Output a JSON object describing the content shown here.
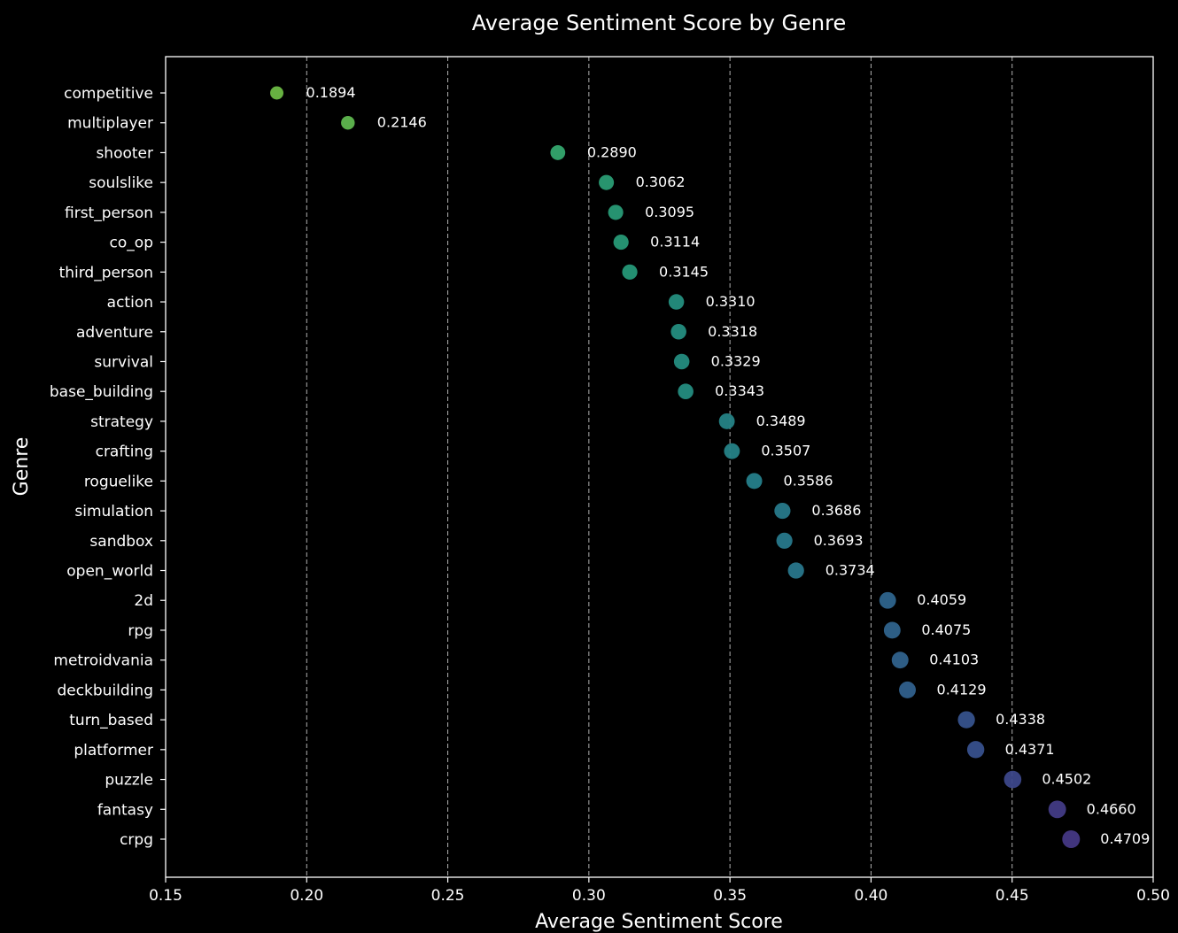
{
  "chart_data": {
    "type": "scatter",
    "title": "Average Sentiment Score by Genre",
    "xlabel": "Average Sentiment Score",
    "ylabel": "Genre",
    "xlim": [
      0.15,
      0.5
    ],
    "xticks": [
      "0.15",
      "0.20",
      "0.25",
      "0.30",
      "0.35",
      "0.40",
      "0.45",
      "0.50"
    ],
    "xtick_values": [
      0.15,
      0.2,
      0.25,
      0.3,
      0.35,
      0.4,
      0.45,
      0.5
    ],
    "grid": "x-dashed",
    "colormap": "viridis",
    "categories": [
      "competitive",
      "multiplayer",
      "shooter",
      "soulslike",
      "first_person",
      "co_op",
      "third_person",
      "action",
      "adventure",
      "survival",
      "base_building",
      "strategy",
      "crafting",
      "roguelike",
      "simulation",
      "sandbox",
      "open_world",
      "2d",
      "rpg",
      "metroidvania",
      "deckbuilding",
      "turn_based",
      "platformer",
      "puzzle",
      "fantasy",
      "crpg"
    ],
    "values": [
      0.1894,
      0.2146,
      0.289,
      0.3062,
      0.3095,
      0.3114,
      0.3145,
      0.331,
      0.3318,
      0.3329,
      0.3343,
      0.3489,
      0.3507,
      0.3586,
      0.3686,
      0.3693,
      0.3734,
      0.4059,
      0.4075,
      0.4103,
      0.4129,
      0.4338,
      0.4371,
      0.4502,
      0.466,
      0.4709
    ],
    "value_labels": [
      "0.1894",
      "0.2146",
      "0.2890",
      "0.3062",
      "0.3095",
      "0.3114",
      "0.3145",
      "0.3310",
      "0.3318",
      "0.3329",
      "0.3343",
      "0.3489",
      "0.3507",
      "0.3586",
      "0.3686",
      "0.3693",
      "0.3734",
      "0.4059",
      "0.4075",
      "0.4103",
      "0.4129",
      "0.4338",
      "0.4371",
      "0.4502",
      "0.4660",
      "0.4709"
    ]
  },
  "colors": {
    "background": "#000000",
    "axis": "#ffffff",
    "grid": "#b0b0b0"
  }
}
